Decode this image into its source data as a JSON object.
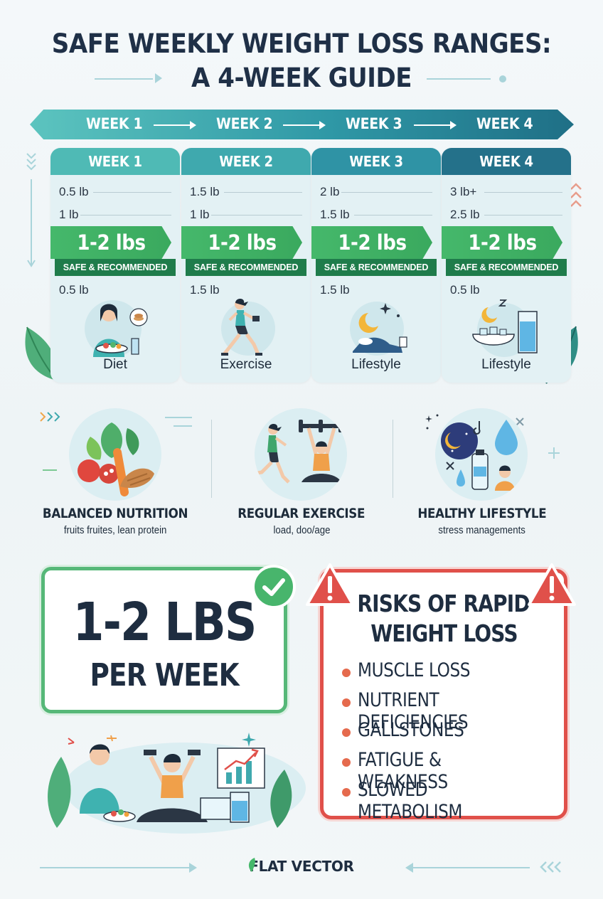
{
  "title": {
    "line1": "SAFE WEEKLY WEIGHT LOSS RANGES:",
    "line2": "A 4-WEEK GUIDE"
  },
  "timeline": {
    "labels": [
      "WEEK 1",
      "WEEK 2",
      "WEEK 3",
      "WEEK 4"
    ]
  },
  "weeks": [
    {
      "label": "WEEK 1",
      "top_value": "0.5 lb",
      "second_value": "1 lb",
      "range": "1-2 lbs",
      "tag": "SAFE & RECOMMENDED",
      "bottom_value": "0.5 lb",
      "category": "Diet",
      "illustration_icon": "woman-eating-salad-icon",
      "header_color": "#4fbab5"
    },
    {
      "label": "WEEK 2",
      "top_value": "1.5 lb",
      "second_value": "1 lb",
      "range": "1-2 lbs",
      "tag": "SAFE & RECOMMENDED",
      "bottom_value": "1.5 lb",
      "category": "Exercise",
      "illustration_icon": "woman-running-dumbbell-icon",
      "header_color": "#3fa9ae"
    },
    {
      "label": "WEEK 3",
      "top_value": "2 lb",
      "second_value": "1.5 lb",
      "range": "1-2 lbs",
      "tag": "SAFE & RECOMMENDED",
      "bottom_value": "1.5 lb",
      "category": "Lifestyle",
      "illustration_icon": "moon-sleep-icon",
      "header_color": "#2f93a5"
    },
    {
      "label": "WEEK 4",
      "top_value": "3 lb+",
      "second_value": "2.5 lb",
      "range": "1-2 lbs",
      "tag": "SAFE & RECOMMENDED",
      "bottom_value": "0.5 lb",
      "category": "Lifestyle",
      "illustration_icon": "moon-water-bowl-icon",
      "header_color": "#24718a"
    }
  ],
  "pillars": [
    {
      "title": "BALANCED NUTRITION",
      "subtitle": "fruits fruites, lean protein",
      "icon": "vegetables-protein-icon"
    },
    {
      "title": "REGULAR EXERCISE",
      "subtitle": "load, doo/age",
      "icon": "running-weightlifting-icon"
    },
    {
      "title": "HEALTHY LIFESTYLE",
      "subtitle": "stress managements",
      "icon": "moon-water-bottle-icon"
    }
  ],
  "goal": {
    "big": "1-2 LBS",
    "small": "PER WEEK",
    "icon": "checkmark-icon"
  },
  "risks": {
    "title_line1": "RISKS OF RAPID",
    "title_line2": "WEIGHT LOSS",
    "items": [
      "MUSCLE LOSS",
      "NUTRIENT DEFICIENCIES",
      "GALLSTONES",
      "FATIGUE & WEAKNESS",
      "SLOWED METABOLISM"
    ],
    "icon": "warning-triangle-icon"
  },
  "brand": "FLAT VECTOR",
  "colors": {
    "green": "#45b86b",
    "dark_green": "#1f7c4b",
    "teal": "#2f98a6",
    "red": "#e0504a",
    "navy": "#1e2d40"
  }
}
